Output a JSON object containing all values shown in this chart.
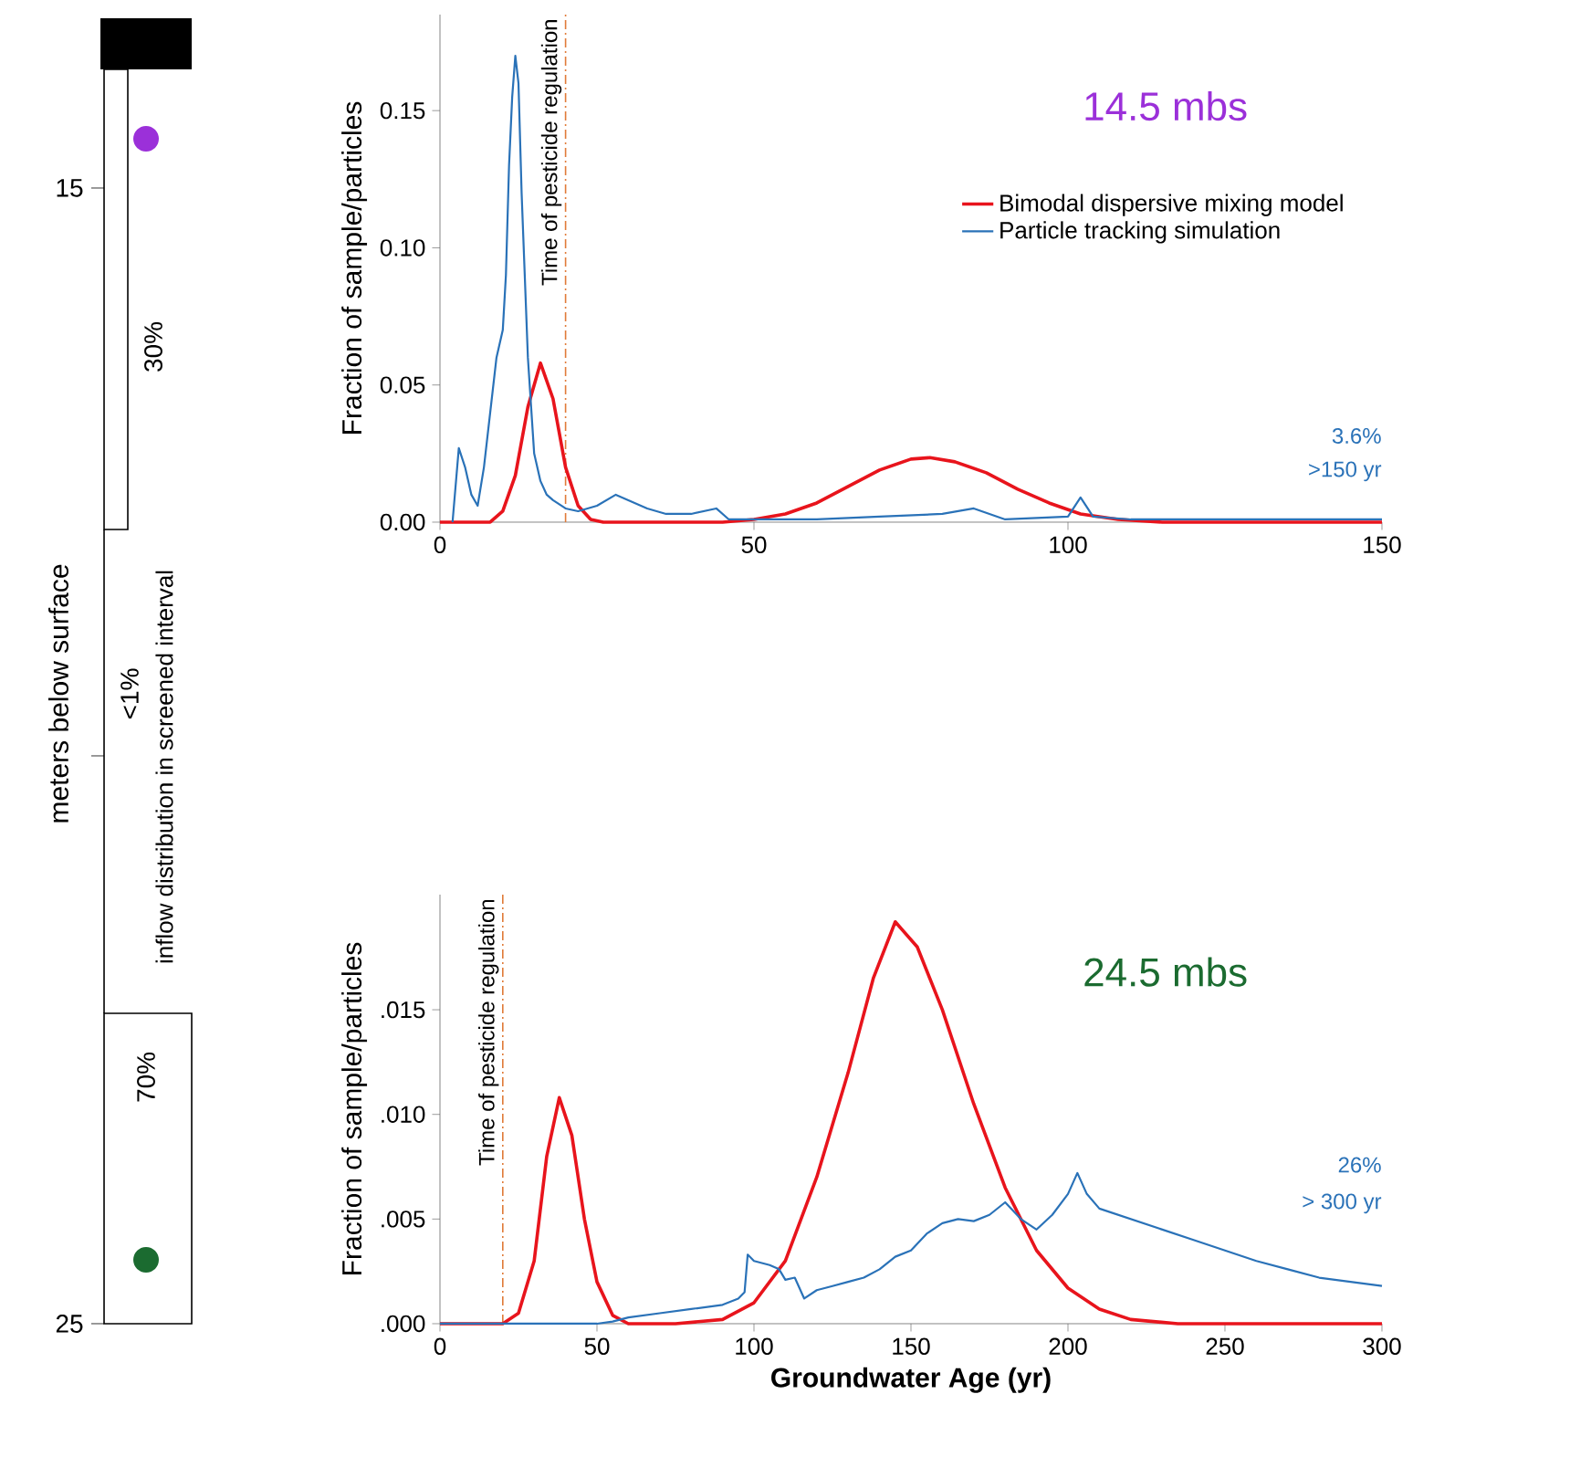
{
  "chart_data": [
    {
      "type": "other",
      "ylabel": "meters below surface",
      "annotations": [
        "15",
        "25",
        "30%",
        "<1%",
        "inflow distribution in screened interval",
        "70%"
      ]
    },
    {
      "type": "line",
      "title": "14.5 mbs",
      "ylabel": "Fraction of sample/particles",
      "series": [
        {
          "name": "Bimodal dispersive mixing model",
          "color": "#e8141c",
          "x": [
            0,
            8,
            10,
            12,
            14,
            16,
            18,
            20,
            22,
            24,
            26,
            45,
            50,
            55,
            60,
            65,
            70,
            75,
            78,
            82,
            87,
            92,
            97,
            102,
            108,
            115,
            150
          ],
          "values": [
            0,
            0,
            0.004,
            0.017,
            0.042,
            0.058,
            0.045,
            0.02,
            0.006,
            0.001,
            0,
            0,
            0.001,
            0.003,
            0.007,
            0.013,
            0.019,
            0.023,
            0.0235,
            0.022,
            0.018,
            0.012,
            0.007,
            0.003,
            0.001,
            0,
            0
          ]
        },
        {
          "name": "Particle tracking simulation",
          "color": "#2a72b8",
          "x": [
            2,
            3,
            4,
            5,
            6,
            7,
            8,
            9,
            10,
            10.5,
            11,
            11.5,
            12,
            12.5,
            13,
            14,
            15,
            16,
            17,
            18,
            20,
            22,
            25,
            28,
            30,
            33,
            36,
            40,
            44,
            46,
            55,
            60,
            70,
            80,
            85,
            90,
            100,
            102,
            104,
            110,
            130,
            150
          ],
          "values": [
            0,
            0.027,
            0.02,
            0.01,
            0.006,
            0.02,
            0.04,
            0.06,
            0.07,
            0.09,
            0.13,
            0.155,
            0.17,
            0.16,
            0.12,
            0.06,
            0.025,
            0.015,
            0.01,
            0.008,
            0.005,
            0.004,
            0.006,
            0.01,
            0.008,
            0.005,
            0.003,
            0.003,
            0.005,
            0.001,
            0.001,
            0.001,
            0.002,
            0.003,
            0.005,
            0.001,
            0.002,
            0.009,
            0.002,
            0.001,
            0.001,
            0.001
          ]
        }
      ],
      "xlim": [
        0,
        150
      ],
      "xticks": [
        0,
        50,
        100,
        150
      ],
      "ylim": [
        0,
        0.185
      ],
      "yticks": [
        {
          "value": 0,
          "label": "0.00"
        },
        {
          "value": 0.05,
          "label": "0.05"
        },
        {
          "value": 0.1,
          "label": "0.10"
        },
        {
          "value": 0.15,
          "label": "0.15"
        }
      ],
      "legend": "right",
      "ref_lines": [
        {
          "axis": "x",
          "value": 20,
          "label": "Time of pesticide regulation",
          "color": "#e07b39",
          "line_style": "dashed"
        }
      ],
      "annotations": [
        "3.6%",
        ">150 yr"
      ]
    },
    {
      "type": "line",
      "title": "24.5 mbs",
      "xlabel": "Groundwater Age (yr)",
      "ylabel": "Fraction of sample/particles",
      "series": [
        {
          "color": "#e8141c",
          "x": [
            0,
            20,
            25,
            30,
            34,
            38,
            42,
            46,
            50,
            55,
            60,
            75,
            90,
            100,
            110,
            120,
            130,
            138,
            145,
            152,
            160,
            170,
            180,
            190,
            200,
            210,
            220,
            235,
            300
          ],
          "values": [
            0,
            0,
            0.0005,
            0.003,
            0.008,
            0.0108,
            0.009,
            0.005,
            0.002,
            0.0004,
            0,
            0,
            0.0002,
            0.001,
            0.003,
            0.007,
            0.012,
            0.0165,
            0.0192,
            0.018,
            0.015,
            0.0105,
            0.0065,
            0.0035,
            0.0017,
            0.0007,
            0.0002,
            0,
            0
          ]
        },
        {
          "color": "#2a72b8",
          "x": [
            0,
            50,
            55,
            60,
            70,
            80,
            90,
            95,
            97,
            98,
            100,
            105,
            108,
            110,
            113,
            116,
            120,
            125,
            130,
            135,
            140,
            145,
            150,
            155,
            160,
            165,
            170,
            175,
            180,
            185,
            190,
            195,
            200,
            203,
            206,
            210,
            220,
            230,
            240,
            250,
            260,
            270,
            280,
            290,
            300
          ],
          "values": [
            0,
            0,
            0.0001,
            0.0003,
            0.0005,
            0.0007,
            0.0009,
            0.0012,
            0.0015,
            0.0033,
            0.003,
            0.0028,
            0.0026,
            0.0021,
            0.0022,
            0.0012,
            0.0016,
            0.0018,
            0.002,
            0.0022,
            0.0026,
            0.0032,
            0.0035,
            0.0043,
            0.0048,
            0.005,
            0.0049,
            0.0052,
            0.0058,
            0.005,
            0.0045,
            0.0052,
            0.0062,
            0.0072,
            0.0062,
            0.0055,
            0.005,
            0.0045,
            0.004,
            0.0035,
            0.003,
            0.0026,
            0.0022,
            0.002,
            0.0018
          ]
        }
      ],
      "xlim": [
        0,
        300
      ],
      "xticks": [
        0,
        50,
        100,
        150,
        200,
        250,
        300
      ],
      "ylim": [
        0,
        0.0205
      ],
      "yticks": [
        {
          "value": 0,
          "label": ".000"
        },
        {
          "value": 0.005,
          "label": ".005"
        },
        {
          "value": 0.01,
          "label": ".010"
        },
        {
          "value": 0.015,
          "label": ".015"
        }
      ],
      "ref_lines": [
        {
          "axis": "x",
          "value": 20,
          "label": "Time of pesticide regulation",
          "color": "#e07b39",
          "line_style": "dashed"
        }
      ],
      "annotations": [
        "26%",
        "> 300 yr"
      ]
    }
  ]
}
